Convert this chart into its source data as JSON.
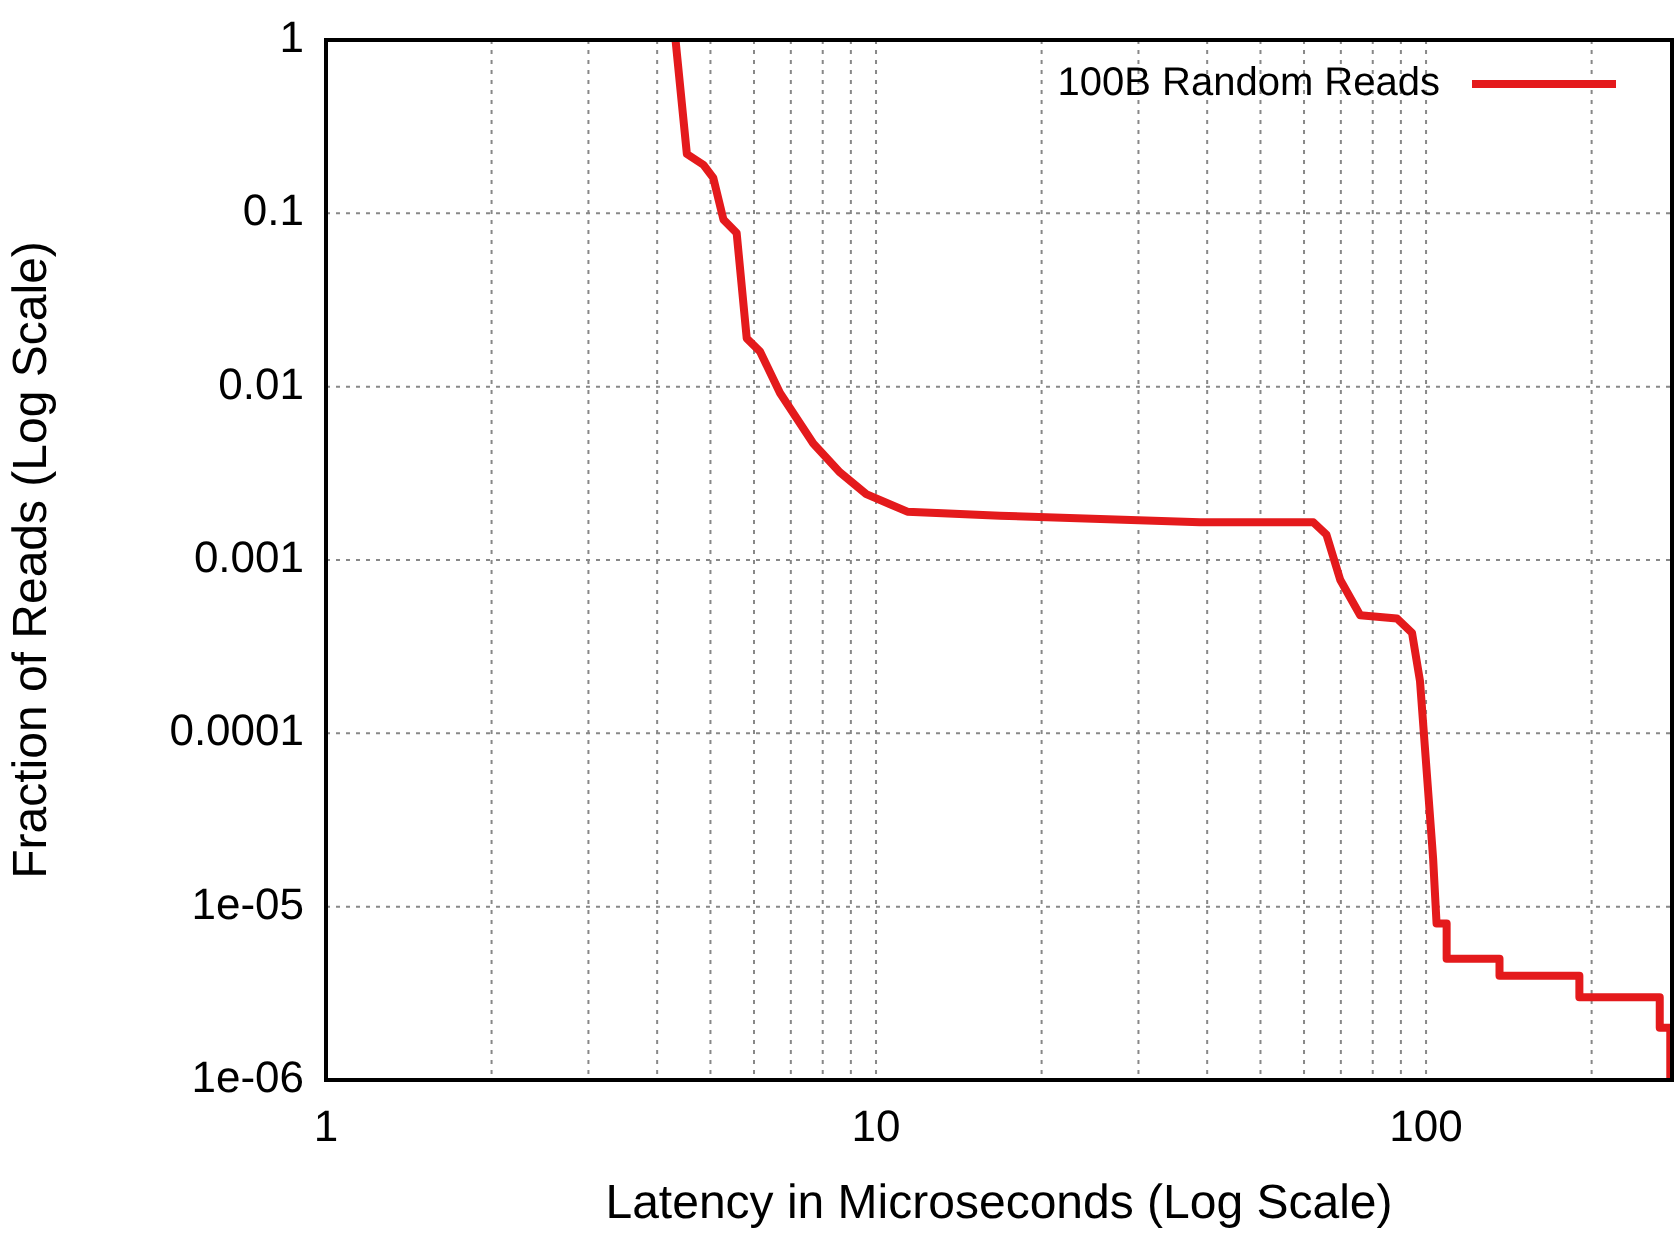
{
  "chart_data": {
    "type": "line",
    "xlabel": "Latency in Microseconds (Log Scale)",
    "ylabel": "Fraction of Reads (Log Scale)",
    "log": "xy",
    "grid": true,
    "legend": "top right",
    "marker": "none",
    "line_style": "solid",
    "xlim": [
      1,
      280
    ],
    "ylim": [
      1e-06,
      1
    ],
    "xticks": [
      1,
      {
        "value": 2,
        "label": null
      },
      {
        "value": 3,
        "label": null
      },
      {
        "value": 4,
        "label": null
      },
      {
        "value": 5,
        "label": null
      },
      {
        "value": 6,
        "label": null
      },
      {
        "value": 7,
        "label": null
      },
      {
        "value": 8,
        "label": null
      },
      {
        "value": 9,
        "label": null
      },
      10,
      {
        "value": 20,
        "label": null
      },
      {
        "value": 30,
        "label": null
      },
      {
        "value": 40,
        "label": null
      },
      {
        "value": 50,
        "label": null
      },
      {
        "value": 60,
        "label": null
      },
      {
        "value": 70,
        "label": null
      },
      {
        "value": 80,
        "label": null
      },
      {
        "value": 90,
        "label": null
      },
      100,
      {
        "value": 200,
        "label": null
      }
    ],
    "yticks": [
      {
        "value": 1e-06,
        "label": "1e-06"
      },
      {
        "value": 1e-05,
        "label": "1e-05"
      },
      {
        "value": 0.0001,
        "label": "0.0001"
      },
      {
        "value": 0.001,
        "label": "0.001"
      },
      {
        "value": 0.01,
        "label": "0.01"
      },
      {
        "value": 0.1,
        "label": "0.1"
      },
      {
        "value": 1,
        "label": "1"
      }
    ],
    "series": [
      {
        "name": "100B Random Reads",
        "color": "#e41a1c",
        "x": [
          4.32,
          4.53,
          4.86,
          5.06,
          5.28,
          5.58,
          5.82,
          6.15,
          6.69,
          7.69,
          8.6,
          9.6,
          11.4,
          16.8,
          38.8,
          62.4,
          65.9,
          69.8,
          75.9,
          88.5,
          94.3,
          97.5,
          103,
          104.5,
          109,
          109,
          136,
          136,
          190,
          190,
          266,
          266,
          278,
          278
        ],
        "values": [
          1,
          0.22,
          0.19,
          0.16,
          0.092,
          0.077,
          0.019,
          0.016,
          0.0092,
          0.0047,
          0.0032,
          0.0024,
          0.0019,
          0.0018,
          0.00165,
          0.00165,
          0.0014,
          0.00077,
          0.00048,
          0.00046,
          0.00038,
          0.0002,
          1.9e-05,
          8e-06,
          8e-06,
          5e-06,
          5e-06,
          4e-06,
          4e-06,
          3e-06,
          3e-06,
          2e-06,
          2e-06,
          1e-06
        ]
      }
    ]
  }
}
